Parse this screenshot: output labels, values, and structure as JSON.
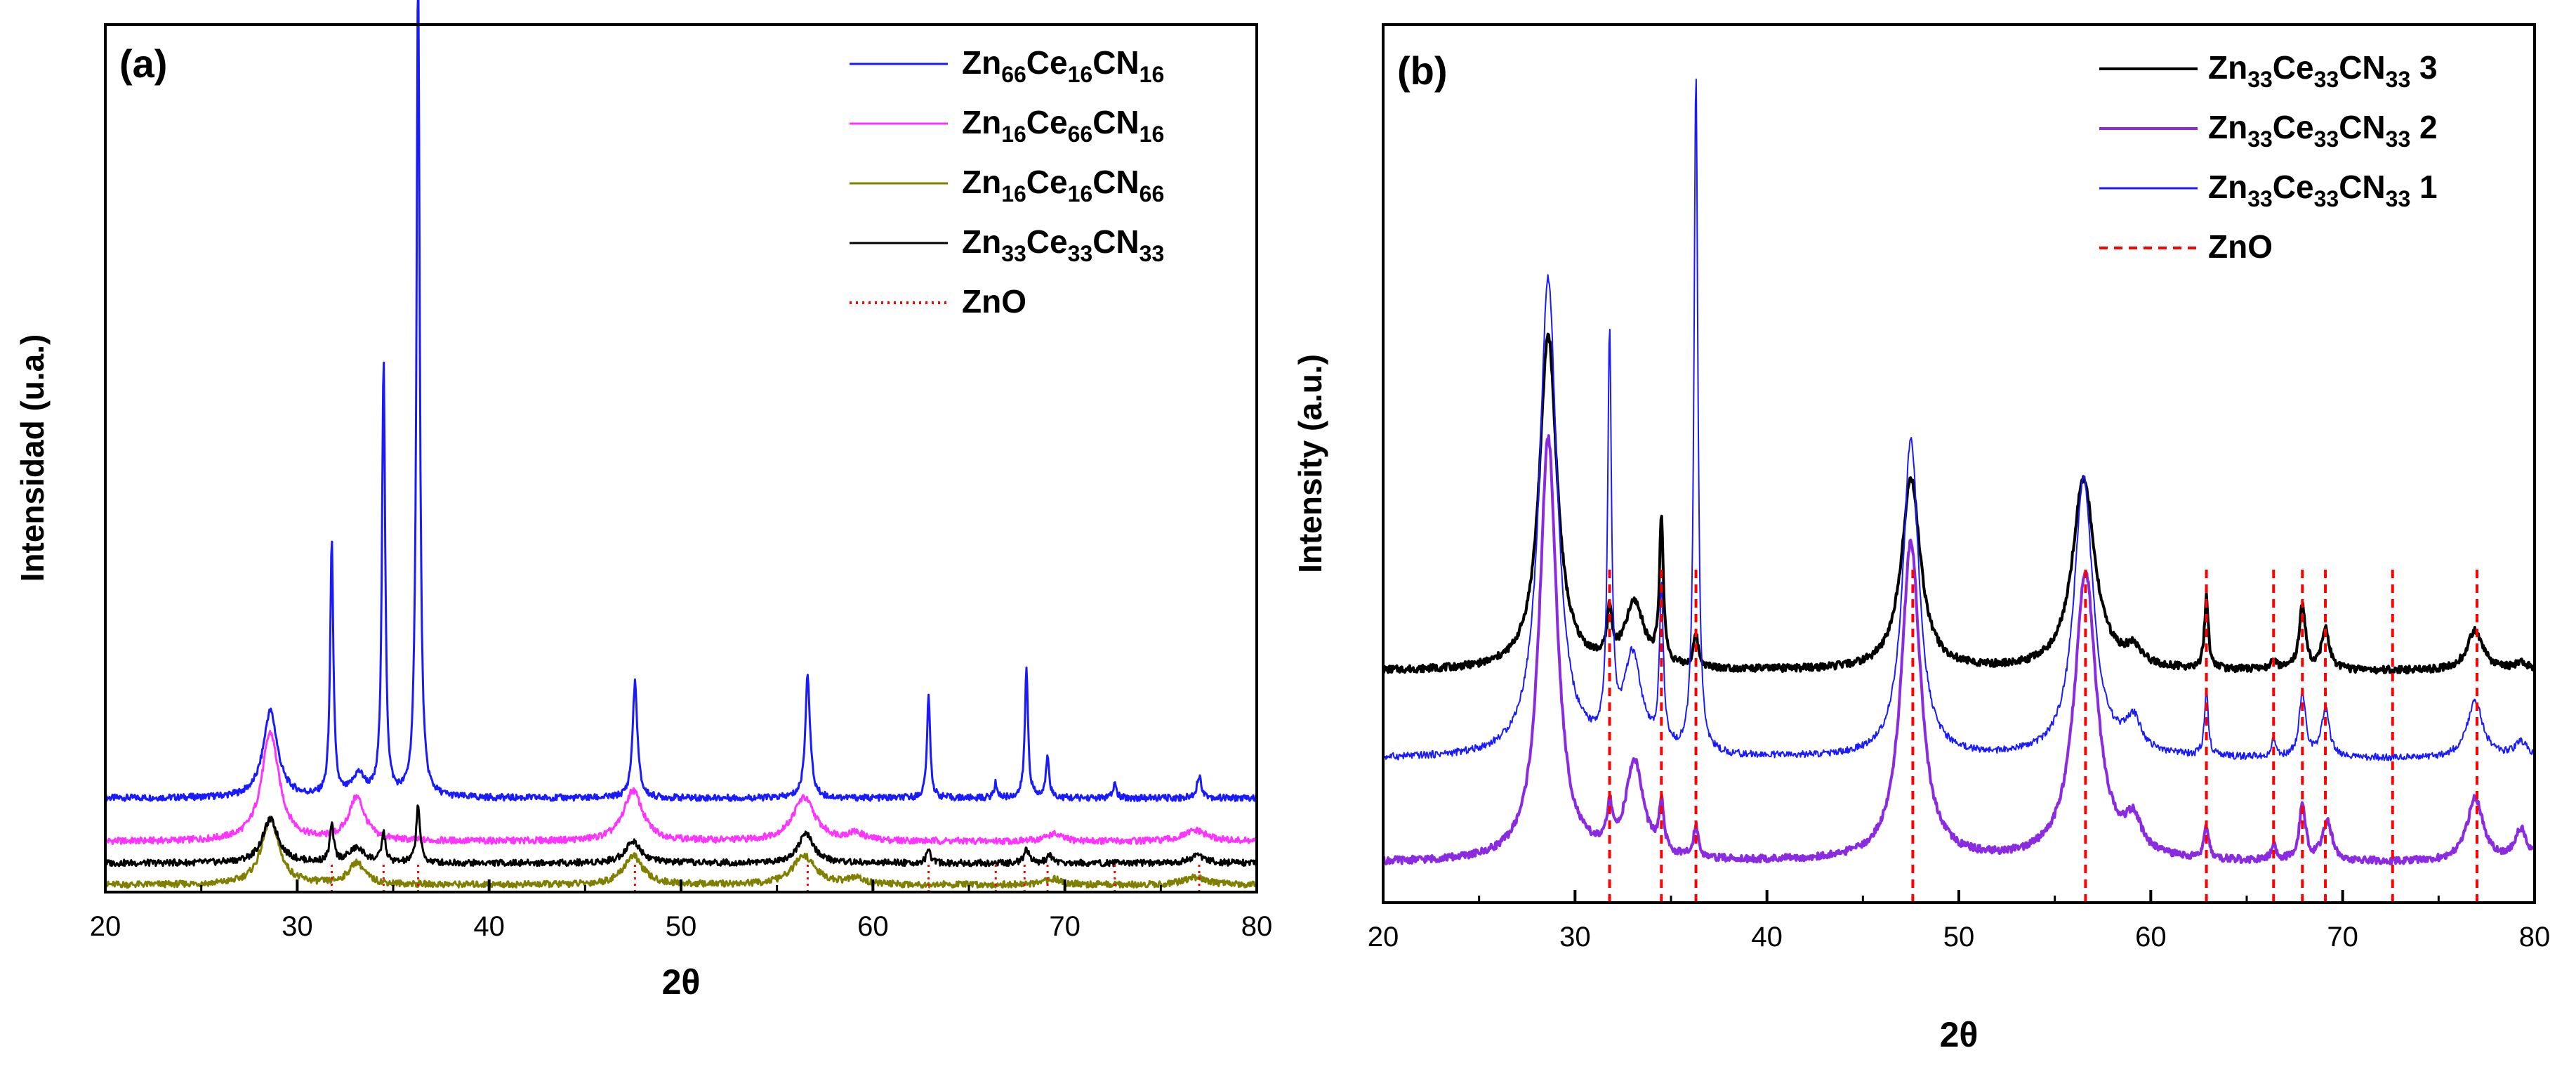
{
  "chart_data": [
    {
      "type": "line",
      "panel_label": "(a)",
      "xlabel": "2θ",
      "ylabel": "Intensidad (u.a.)",
      "xlim": [
        20,
        80
      ],
      "ylim": [
        0,
        120
      ],
      "xticks": [
        "20",
        "30",
        "40",
        "50",
        "60",
        "70",
        "80"
      ],
      "grid": false,
      "legend_position": "top-right",
      "series": [
        {
          "name": "Zn66Ce16CN16",
          "legend": [
            [
              "Zn",
              ""
            ],
            [
              "66",
              "sub"
            ],
            [
              "Ce",
              ""
            ],
            [
              "16",
              "sub"
            ],
            [
              "CN",
              ""
            ],
            [
              "16",
              "sub"
            ]
          ],
          "color": "#1a1aff",
          "width": 3,
          "dash": "",
          "offset": 13,
          "peaks": [
            [
              28.6,
              12,
              0.45
            ],
            [
              31.8,
              35,
              0.1
            ],
            [
              33.2,
              3,
              0.4
            ],
            [
              34.5,
              60,
              0.1
            ],
            [
              36.3,
              115,
              0.1
            ],
            [
              47.6,
              16,
              0.15
            ],
            [
              56.6,
              17,
              0.15
            ],
            [
              62.9,
              14,
              0.1
            ],
            [
              66.4,
              2,
              0.1
            ],
            [
              68.0,
              18,
              0.1
            ],
            [
              69.1,
              6,
              0.1
            ],
            [
              72.6,
              2,
              0.1
            ],
            [
              77.0,
              3,
              0.15
            ]
          ]
        },
        {
          "name": "Zn16Ce66CN16",
          "legend": [
            [
              "Zn",
              ""
            ],
            [
              "16",
              "sub"
            ],
            [
              "Ce",
              ""
            ],
            [
              "66",
              "sub"
            ],
            [
              "CN",
              ""
            ],
            [
              "16",
              "sub"
            ]
          ],
          "color": "#ff33ff",
          "width": 3,
          "dash": "",
          "offset": 7,
          "peaks": [
            [
              28.6,
              15,
              0.55
            ],
            [
              33.1,
              6,
              0.5
            ],
            [
              47.5,
              7,
              0.6
            ],
            [
              56.4,
              6,
              0.7
            ],
            [
              59.1,
              1,
              0.5
            ],
            [
              69.4,
              1,
              0.5
            ],
            [
              76.8,
              1.5,
              0.7
            ]
          ]
        },
        {
          "name": "Zn16Ce16CN66",
          "legend": [
            [
              "Zn",
              ""
            ],
            [
              "16",
              "sub"
            ],
            [
              "Ce",
              ""
            ],
            [
              "16",
              "sub"
            ],
            [
              "CN",
              ""
            ],
            [
              "66",
              "sub"
            ]
          ],
          "color": "#808000",
          "width": 3,
          "dash": "",
          "offset": 1,
          "peaks": [
            [
              28.6,
              9,
              0.55
            ],
            [
              33.1,
              3,
              0.5
            ],
            [
              47.5,
              4,
              0.6
            ],
            [
              56.4,
              4,
              0.7
            ],
            [
              59.1,
              0.8,
              0.5
            ],
            [
              69.4,
              0.8,
              0.5
            ],
            [
              76.8,
              1,
              0.7
            ]
          ]
        },
        {
          "name": "Zn33Ce33CN33",
          "legend": [
            [
              "Zn",
              ""
            ],
            [
              "33",
              "sub"
            ],
            [
              "Ce",
              ""
            ],
            [
              "33",
              "sub"
            ],
            [
              "CN",
              ""
            ],
            [
              "33",
              "sub"
            ]
          ],
          "color": "#000000",
          "width": 3,
          "dash": "",
          "offset": 4,
          "peaks": [
            [
              28.6,
              6,
              0.5
            ],
            [
              31.8,
              5,
              0.12
            ],
            [
              33.1,
              2,
              0.5
            ],
            [
              34.5,
              4,
              0.12
            ],
            [
              36.3,
              8,
              0.12
            ],
            [
              47.5,
              3,
              0.5
            ],
            [
              56.5,
              4,
              0.5
            ],
            [
              62.9,
              1.5,
              0.15
            ],
            [
              68.0,
              2,
              0.15
            ],
            [
              69.2,
              1,
              0.2
            ],
            [
              76.9,
              1,
              0.5
            ]
          ]
        },
        {
          "name": "ZnO",
          "legend": [
            [
              "ZnO",
              ""
            ]
          ],
          "color": "#ff0000",
          "width": 3,
          "dash": "3,6",
          "type": "reference",
          "height": 4,
          "positions": [
            31.8,
            34.5,
            36.3,
            47.6,
            56.6,
            62.9,
            66.4,
            67.9,
            69.1,
            72.6,
            77.0
          ]
        }
      ]
    },
    {
      "type": "line",
      "panel_label": "(b)",
      "xlabel": "2θ",
      "ylabel": "Intensity (a.u.)",
      "xlim": [
        20,
        80
      ],
      "ylim": [
        0,
        110
      ],
      "xticks": [
        "20",
        "30",
        "40",
        "50",
        "60",
        "70",
        "80"
      ],
      "grid": false,
      "legend_position": "top-right",
      "series": [
        {
          "name": "Zn33Ce33CN33 3",
          "legend": [
            [
              "Zn",
              ""
            ],
            [
              "33",
              "sub"
            ],
            [
              "Ce",
              ""
            ],
            [
              "33",
              "sub"
            ],
            [
              "CN",
              ""
            ],
            [
              "33",
              "sub"
            ],
            [
              " 3",
              ""
            ]
          ],
          "color": "#000000",
          "width": 4,
          "dash": "",
          "offset": 29,
          "peaks": [
            [
              28.6,
              42,
              0.55
            ],
            [
              31.8,
              6,
              0.15
            ],
            [
              33.1,
              8,
              0.6
            ],
            [
              34.5,
              18,
              0.12
            ],
            [
              36.3,
              4,
              0.15
            ],
            [
              47.5,
              24,
              0.6
            ],
            [
              56.5,
              24,
              0.7
            ],
            [
              59.1,
              2,
              0.5
            ],
            [
              62.9,
              9,
              0.12
            ],
            [
              66.4,
              1.5,
              0.15
            ],
            [
              67.9,
              8,
              0.2
            ],
            [
              69.1,
              5,
              0.25
            ],
            [
              76.9,
              5,
              0.5
            ],
            [
              79.3,
              1,
              0.4
            ]
          ]
        },
        {
          "name": "Zn33Ce33CN33 2",
          "legend": [
            [
              "Zn",
              ""
            ],
            [
              "33",
              "sub"
            ],
            [
              "Ce",
              ""
            ],
            [
              "33",
              "sub"
            ],
            [
              "CN",
              ""
            ],
            [
              "33",
              "sub"
            ],
            [
              " 2",
              ""
            ]
          ],
          "color": "#8a2be2",
          "width": 4,
          "dash": "",
          "offset": 5,
          "peaks": [
            [
              28.6,
              53,
              0.55
            ],
            [
              31.8,
              5,
              0.15
            ],
            [
              33.1,
              12,
              0.55
            ],
            [
              34.5,
              6,
              0.15
            ],
            [
              36.3,
              4,
              0.15
            ],
            [
              47.5,
              40,
              0.6
            ],
            [
              56.6,
              36,
              0.7
            ],
            [
              59.1,
              4,
              0.5
            ],
            [
              62.9,
              4,
              0.15
            ],
            [
              66.4,
              2,
              0.15
            ],
            [
              67.9,
              7,
              0.2
            ],
            [
              69.2,
              5,
              0.3
            ],
            [
              76.9,
              8,
              0.5
            ],
            [
              79.3,
              4,
              0.4
            ]
          ]
        },
        {
          "name": "Zn33Ce33CN33 1",
          "legend": [
            [
              "Zn",
              ""
            ],
            [
              "33",
              "sub"
            ],
            [
              "Ce",
              ""
            ],
            [
              "33",
              "sub"
            ],
            [
              "CN",
              ""
            ],
            [
              "33",
              "sub"
            ],
            [
              " 1",
              ""
            ]
          ],
          "color": "#1a1aff",
          "width": 2,
          "dash": "",
          "offset": 18,
          "peaks": [
            [
              28.6,
              60,
              0.55
            ],
            [
              31.8,
              50,
              0.12
            ],
            [
              33.0,
              12,
              0.55
            ],
            [
              34.5,
              20,
              0.12
            ],
            [
              36.3,
              85,
              0.12
            ],
            [
              47.5,
              40,
              0.5
            ],
            [
              56.5,
              35,
              0.6
            ],
            [
              59.1,
              4,
              0.5
            ],
            [
              62.9,
              8,
              0.12
            ],
            [
              66.4,
              2,
              0.15
            ],
            [
              67.9,
              8,
              0.2
            ],
            [
              69.1,
              6,
              0.25
            ],
            [
              76.9,
              7,
              0.5
            ],
            [
              79.3,
              2,
              0.4
            ]
          ]
        },
        {
          "name": "ZnO",
          "legend": [
            [
              "ZnO",
              ""
            ]
          ],
          "color": "#ff0000",
          "width": 4,
          "dash": "12,9",
          "type": "reference",
          "height": 42,
          "positions": [
            31.8,
            34.5,
            36.3,
            47.6,
            56.6,
            62.9,
            66.4,
            67.9,
            69.1,
            72.6,
            77.0
          ]
        }
      ]
    }
  ]
}
